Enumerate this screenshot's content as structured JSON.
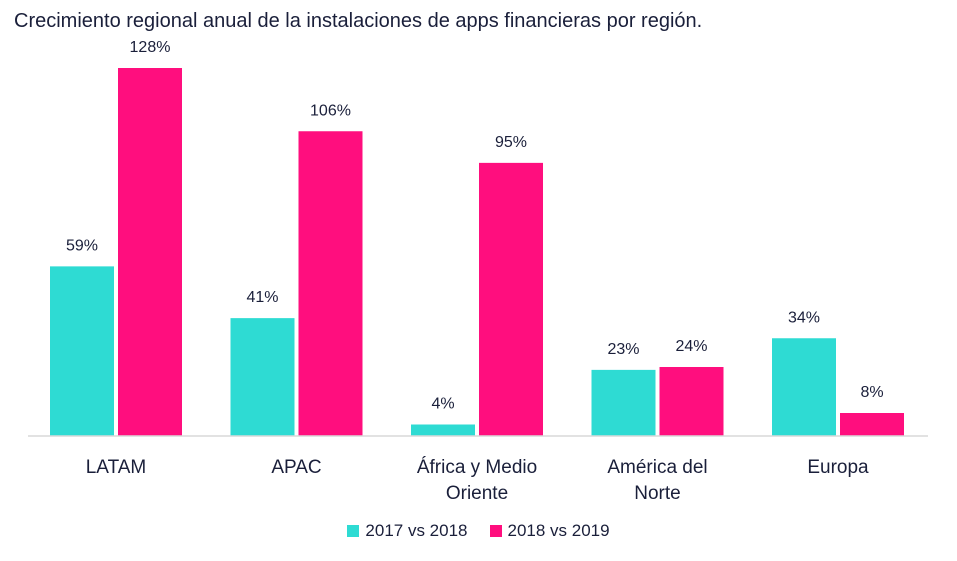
{
  "chart_data": {
    "type": "bar",
    "title": "Crecimiento regional anual de la instalaciones de apps financieras por región.",
    "categories": [
      [
        "LATAM"
      ],
      [
        "APAC"
      ],
      [
        "África y Medio",
        "Oriente"
      ],
      [
        "América del",
        "Norte"
      ],
      [
        "Europa"
      ]
    ],
    "series": [
      {
        "name": "2017 vs 2018",
        "color": "#2edbd3",
        "values": [
          59,
          41,
          4,
          23,
          34
        ],
        "labels": [
          "59%",
          "41%",
          "4%",
          "23%",
          "34%"
        ]
      },
      {
        "name": "2018 vs 2019",
        "color": "#ff0e7e",
        "values": [
          128,
          106,
          95,
          24,
          8
        ],
        "labels": [
          "128%",
          "106%",
          "95%",
          "24%",
          "8%"
        ]
      }
    ],
    "ylim": [
      0,
      128
    ],
    "grid": false,
    "legend_position": "bottom"
  }
}
